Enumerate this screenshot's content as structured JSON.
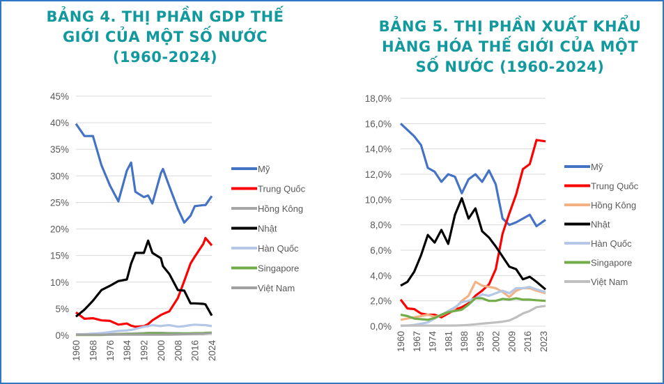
{
  "titles": {
    "left": "BẢNG 4. THỊ PHẦN GDP THẾ GIỚI CỦA MỘT SỐ NƯỚC (1960-2024)",
    "right": "BẢNG 5. THỊ PHẦN XUẤT KHẨU HÀNG HÓA THẾ GIỚI CỦA MỘT SỐ NƯỚC (1960-2024)"
  },
  "chart_data": [
    {
      "type": "line",
      "title": "BẢNG 4. THỊ PHẦN GDP THẾ GIỚI CỦA MỘT SỐ NƯỚC (1960-2024)",
      "ylim": [
        0,
        45
      ],
      "yticks": [
        "0%",
        "5%",
        "10%",
        "15%",
        "20%",
        "25%",
        "30%",
        "35%",
        "40%",
        "45%"
      ],
      "xticks": [
        "1960",
        "1968",
        "1976",
        "1984",
        "1992",
        "2000",
        "2008",
        "2016",
        "2024"
      ],
      "xrange": [
        1960,
        2024
      ],
      "legend": "right",
      "grid": true,
      "x": [
        1960,
        1964,
        1968,
        1972,
        1976,
        1980,
        1984,
        1986,
        1988,
        1992,
        1994,
        1996,
        2000,
        2001,
        2004,
        2008,
        2011,
        2014,
        2016,
        2020,
        2021,
        2024
      ],
      "series": [
        {
          "name": "Mỹ",
          "color": "#4472c4",
          "values": [
            39.8,
            37.5,
            37.5,
            32,
            28.2,
            25.2,
            31,
            32.5,
            27,
            26,
            26.3,
            24.8,
            30.5,
            31.3,
            28,
            23.8,
            21.2,
            22.5,
            24.3,
            24.5,
            24.5,
            26.2
          ]
        },
        {
          "name": "Trung Quốc",
          "color": "#ff0000",
          "values": [
            4.3,
            3.1,
            3.2,
            2.8,
            2.7,
            2.0,
            2.2,
            1.8,
            1.6,
            1.7,
            2.1,
            2.8,
            3.8,
            4.0,
            4.5,
            7.0,
            10.2,
            13.5,
            14.8,
            17.2,
            18.3,
            16.9
          ]
        },
        {
          "name": "Hồng Kông",
          "color": "#a5a5a5",
          "values": [
            0.1,
            0.1,
            0.1,
            0.15,
            0.2,
            0.25,
            0.3,
            0.3,
            0.35,
            0.4,
            0.45,
            0.45,
            0.45,
            0.45,
            0.4,
            0.4,
            0.35,
            0.35,
            0.4,
            0.4,
            0.4,
            0.4
          ]
        },
        {
          "name": "Nhật",
          "color": "#000000",
          "values": [
            3.5,
            4.8,
            6.5,
            8.5,
            9.3,
            10.2,
            10.5,
            13.5,
            15.5,
            15.5,
            17.8,
            15.5,
            14.5,
            13.0,
            11.5,
            8.5,
            8.4,
            6.0,
            6.0,
            5.9,
            5.8,
            3.7
          ]
        },
        {
          "name": "Hàn Quốc",
          "color": "#b4c7e7",
          "values": [
            0.2,
            0.2,
            0.3,
            0.4,
            0.6,
            0.8,
            0.9,
            1.0,
            1.2,
            1.6,
            1.7,
            1.9,
            1.7,
            1.8,
            1.9,
            1.6,
            1.7,
            1.9,
            2.0,
            1.9,
            1.9,
            1.7
          ]
        },
        {
          "name": "Singapore",
          "color": "#70ad47",
          "values": [
            0.05,
            0.05,
            0.05,
            0.05,
            0.1,
            0.15,
            0.2,
            0.2,
            0.2,
            0.3,
            0.35,
            0.35,
            0.35,
            0.3,
            0.3,
            0.3,
            0.35,
            0.35,
            0.35,
            0.4,
            0.45,
            0.5
          ]
        },
        {
          "name": "Việt Nam",
          "color": "#a0a0a0",
          "values": [
            0.1,
            0.1,
            0.1,
            0.1,
            0.1,
            0.1,
            0.1,
            0.1,
            0.1,
            0.1,
            0.1,
            0.1,
            0.1,
            0.1,
            0.12,
            0.15,
            0.2,
            0.22,
            0.24,
            0.28,
            0.3,
            0.4
          ]
        }
      ]
    },
    {
      "type": "line",
      "title": "BẢNG 5. THỊ PHẦN XUẤT KHẨU HÀNG HÓA THẾ GIỚI CỦA MỘT SỐ NƯỚC (1960-2024)",
      "ylim": [
        0,
        18
      ],
      "yticks": [
        "0,0%",
        "2,0%",
        "4,0%",
        "6,0%",
        "8,0%",
        "10,0%",
        "12,0%",
        "14,0%",
        "16,0%",
        "18,0%"
      ],
      "xticks": [
        "1960",
        "1967",
        "1974",
        "1981",
        "1988",
        "1995",
        "2002",
        "2009",
        "2016",
        "2023"
      ],
      "xrange": [
        1960,
        2024
      ],
      "legend": "right",
      "grid": true,
      "x": [
        1960,
        1963,
        1966,
        1969,
        1972,
        1975,
        1978,
        1981,
        1984,
        1987,
        1990,
        1993,
        1996,
        1999,
        2002,
        2005,
        2008,
        2011,
        2014,
        2017,
        2020,
        2024
      ],
      "series": [
        {
          "name": "Mỹ",
          "color": "#4472c4",
          "values": [
            16,
            15.5,
            15,
            14.3,
            12.5,
            12.2,
            11.4,
            12,
            11.8,
            10.5,
            11.6,
            12,
            11.4,
            12.3,
            11.2,
            8.5,
            8.0,
            8.2,
            8.5,
            8.8,
            7.9,
            8.4
          ]
        },
        {
          "name": "Trung Quốc",
          "color": "#ff0000",
          "values": [
            2.1,
            1.4,
            1.35,
            1.0,
            0.9,
            0.9,
            0.7,
            1.0,
            1.3,
            1.5,
            1.8,
            2.4,
            2.8,
            3.3,
            4.5,
            7.3,
            8.9,
            10.4,
            12.4,
            12.8,
            14.7,
            14.6
          ]
        },
        {
          "name": "Hồng Kông",
          "color": "#f4b183",
          "values": [
            0.5,
            0.6,
            0.7,
            0.8,
            0.9,
            0.75,
            0.85,
            1.1,
            1.4,
            2.0,
            2.4,
            3.5,
            3.2,
            3.1,
            3.0,
            2.7,
            2.3,
            2.8,
            3.0,
            3.0,
            2.8,
            2.6
          ]
        },
        {
          "name": "Nhật",
          "color": "#000000",
          "values": [
            3.2,
            3.5,
            4.3,
            5.6,
            7.2,
            6.6,
            7.6,
            6.5,
            8.8,
            10.1,
            8.5,
            9.3,
            7.5,
            7.0,
            6.3,
            5.5,
            4.7,
            4.5,
            3.7,
            3.9,
            3.5,
            2.9
          ]
        },
        {
          "name": "Hàn Quốc",
          "color": "#b4c7e7",
          "values": [
            0.02,
            0.05,
            0.1,
            0.2,
            0.3,
            0.6,
            0.9,
            1.2,
            1.5,
            1.9,
            2.0,
            2.2,
            2.5,
            2.4,
            2.6,
            2.8,
            2.6,
            3.0,
            3.0,
            3.1,
            2.9,
            2.7
          ]
        },
        {
          "name": "Singapore",
          "color": "#70ad47",
          "values": [
            0.9,
            0.8,
            0.6,
            0.55,
            0.5,
            0.65,
            0.9,
            1.1,
            1.2,
            1.3,
            1.7,
            2.2,
            2.2,
            2.0,
            2.0,
            2.15,
            2.1,
            2.2,
            2.1,
            2.1,
            2.05,
            2.0
          ]
        },
        {
          "name": "Việt Nam",
          "color": "#bfbfbf",
          "values": [
            0.05,
            0.05,
            0.05,
            0.05,
            0.05,
            0.05,
            0.05,
            0.05,
            0.05,
            0.07,
            0.1,
            0.15,
            0.2,
            0.25,
            0.3,
            0.35,
            0.45,
            0.7,
            1.0,
            1.2,
            1.5,
            1.6
          ]
        }
      ]
    }
  ]
}
